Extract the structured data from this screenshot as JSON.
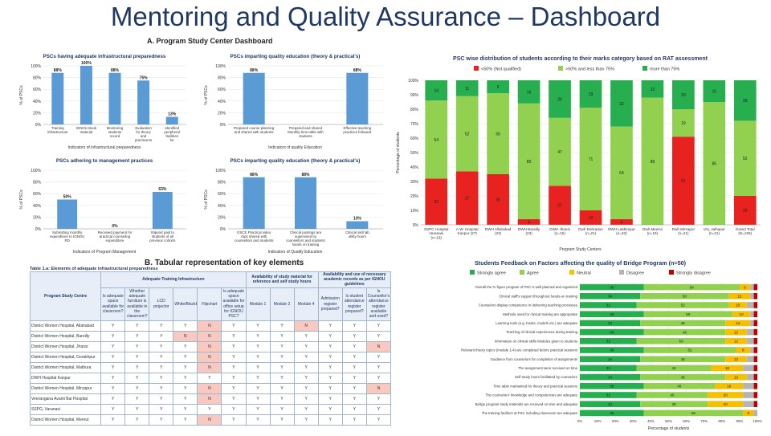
{
  "title": "Mentoring and Quality Assurance – Dashboard",
  "sections": {
    "a": "A. Program Study Center Dashboard",
    "b": "B. Tabular representation of key elements"
  },
  "colors": {
    "blue": "#5b9bd5",
    "red": "#e8221f",
    "lightgreen": "#92d050",
    "green": "#27ae4f",
    "yellow": "#f5c000",
    "grey": "#b4b4b4",
    "darkred": "#c00000"
  },
  "chart_data": [
    {
      "type": "bar",
      "title": "PSCs having adequate infrastructural preparedness",
      "xlabel": "Indicators of infrastructural preparedness",
      "ylabel": "% of PSCs",
      "ylim": [
        0,
        100
      ],
      "yticks": [
        "0%",
        "20%",
        "40%",
        "60%",
        "80%",
        "100%"
      ],
      "categories": [
        "Training infrastructure",
        "IGNOU Book material",
        "Monitoring students record",
        "Evaluation for theory and practicums",
        "Identified peripheral facilities for practicums"
      ],
      "values": [
        88,
        100,
        88,
        75,
        13
      ],
      "labels": [
        "88%",
        "100%",
        "88%",
        "75%",
        "13%"
      ]
    },
    {
      "type": "bar",
      "title": "PSCs imparting quality education (theory & practical's)",
      "xlabel": "Indicators of quality Education",
      "ylabel": "% of PSCs",
      "ylim": [
        0,
        100
      ],
      "yticks": [
        "0%",
        "20%",
        "40%",
        "60%",
        "80%",
        "100%"
      ],
      "categories": [
        "Prepared course planning and shared with students",
        "Prepared and shared Monthly time table with students",
        "Effective teaching practices followed"
      ],
      "values": [
        88,
        0,
        88
      ],
      "labels": [
        "88%",
        "",
        "88%"
      ]
    },
    {
      "type": "bar",
      "title": "PSCs adhering to management practices",
      "xlabel": "Indicators of Program Management",
      "ylabel": "% of PSCs",
      "ylim": [
        0,
        100
      ],
      "yticks": [
        "0%",
        "20%",
        "40%",
        "60%",
        "80%",
        "100%"
      ],
      "categories": [
        "Submitting monthly expenditure to IGNOU RD",
        "Received payment for practical counseling expenditure",
        "Stipend paid to students of all previous cohorts"
      ],
      "values": [
        50,
        0,
        63
      ],
      "labels": [
        "50%",
        "0%",
        "63%"
      ]
    },
    {
      "type": "bar",
      "title": "PSCs imparting quality education (theory & practical's)",
      "xlabel": "Indicators of Quality Education",
      "ylabel": "% of PSCs",
      "ylim": [
        0,
        100
      ],
      "yticks": [
        "0%",
        "20%",
        "40%",
        "60%",
        "80%",
        "100%"
      ],
      "categories": [
        "OSCE Practical video clips shared with counsellors and students",
        "Clinical postings are supervised by counsellors and students hands on training",
        "Clinical skill lab utility hours"
      ],
      "values": [
        88,
        88,
        13
      ],
      "labels": [
        "88%",
        "88%",
        "13%"
      ]
    },
    {
      "type": "bar",
      "stacked": true,
      "title": "PSC wise distribution of students according to their marks category based on RAT assessment",
      "xlabel": "Program Study Centers",
      "ylabel": "Percentage of students",
      "ylim": [
        0,
        100
      ],
      "yticks": [
        "0%",
        "10%",
        "20%",
        "30%",
        "40%",
        "50%",
        "60%",
        "70%",
        "80%",
        "90%",
        "100%"
      ],
      "legend": "top",
      "categories": [
        "SSPC Hospital Varanasi (n=19)",
        "A.W. Hospital Kanpur (27)",
        "DWH Allahabad (23)",
        "DWH Bareilly (23)",
        "DWH Jhansi (n=15)",
        "Dwh Dehradun (n=21)",
        "DWH Lakhimpur (n=23)",
        "Dwh Meerut (n=19)",
        "Dwh Mirzapur (n=21)",
        "VAL Jalhapur (n=21)",
        "Grand Total (N=193)"
      ],
      "series": [
        {
          "name": "<50% (Not qualified)",
          "values": [
            32,
            37,
            35,
            4,
            27,
            10,
            4,
            0,
            61,
            0,
            20
          ],
          "labels": [
            "32",
            "37",
            "35",
            "4",
            "27",
            "10",
            "4",
            "",
            "61",
            "",
            "20"
          ]
        },
        {
          "name": ">50% and less than 75%",
          "values": [
            54,
            52,
            56,
            80,
            47,
            71,
            64,
            88,
            19,
            85,
            52
          ],
          "labels": [
            "54",
            "52",
            "56",
            "80",
            "47",
            "71",
            "64",
            "88",
            "19",
            "85",
            "52"
          ]
        },
        {
          "name": "more than 75%",
          "values": [
            14,
            11,
            9,
            16,
            26,
            19,
            32,
            12,
            20,
            15,
            28
          ],
          "labels": [
            "14",
            "11",
            "9",
            "16",
            "26",
            "19",
            "32",
            "12",
            "20",
            "15",
            "28"
          ]
        }
      ]
    },
    {
      "type": "bar",
      "stacked": true,
      "horizontal": true,
      "title": "Students Feedback on Factors affecting the quality of Bridge Program (n=50)",
      "xlabel": "Percentage of students",
      "xticks": [
        "0%",
        "10%",
        "20%",
        "30%",
        "40%",
        "50%",
        "60%",
        "70%",
        "80%",
        "90%",
        "100%"
      ],
      "legend": "top",
      "categories": [
        "Overall the % figure program of PSC is well planned and organized",
        "Clinical staff's support throughout hands-on training",
        "Counselors display competence in delivering teaching processes",
        "Methods used for clinical training are appropriate",
        "Learning tools (e.g. books, models etc.) are adequate",
        "Teaching of clinical experiences during training",
        "Information on clinical skills Modules given to students",
        "Relevant theory topics (module 1-4) are completed before practical sessions",
        "Guidance from counselors for completion of assignments",
        "The assignment were received on time",
        "Self-study hours facilitated by counselors",
        "Time table maintained for theory and practical sessions",
        "The counselors' knowledge and competencies are adequate",
        "Bridge program study materials are received on time and adequate",
        "The training facilities at PSC including classroom are adequate"
      ],
      "series": [
        {
          "name": "Strongly agree",
          "values": [
            36,
            34,
            32,
            36,
            34,
            36,
            32,
            36,
            34,
            32,
            34,
            36,
            32,
            34,
            36
          ],
          "labels": [
            "36",
            "34",
            "32",
            "36",
            "34",
            "36",
            "32",
            "36",
            "34",
            "32",
            "34",
            "36",
            "32",
            "34",
            "36"
          ]
        },
        {
          "name": "Agree",
          "values": [
            54,
            50,
            52,
            50,
            48,
            46,
            50,
            52,
            48,
            42,
            48,
            40,
            40,
            38,
            56
          ],
          "labels": [
            "54",
            "50",
            "52",
            "50",
            "48",
            "46",
            "50",
            "52",
            "48",
            "42",
            "48",
            "40",
            "40",
            "38",
            "56"
          ]
        },
        {
          "name": "Neutral",
          "values": [
            6,
            12,
            10,
            10,
            14,
            12,
            12,
            8,
            12,
            18,
            12,
            16,
            20,
            20,
            6
          ],
          "labels": [
            "6",
            "12",
            "10",
            "10",
            "14",
            "12",
            "12",
            "8",
            "12",
            "18",
            "12",
            "16",
            "20",
            "20",
            "6"
          ]
        },
        {
          "name": "Disagree",
          "values": [
            2,
            2,
            4,
            2,
            2,
            4,
            4,
            2,
            4,
            6,
            4,
            6,
            6,
            6,
            2
          ],
          "labels": [
            "",
            "",
            "",
            "",
            "",
            "",
            "",
            "",
            "",
            "",
            "",
            "",
            "",
            "",
            ""
          ]
        },
        {
          "name": "Strongly disagree",
          "values": [
            2,
            2,
            2,
            2,
            2,
            2,
            2,
            2,
            2,
            2,
            2,
            2,
            2,
            2,
            0
          ],
          "labels": [
            "",
            "",
            "",
            "",
            "",
            "",
            "",
            "",
            "",
            "",
            "",
            "",
            "",
            "",
            ""
          ]
        }
      ]
    }
  ],
  "table": {
    "caption": "Table 1.a: Elements of adequate infrastructural preparedness",
    "group_headers": [
      "Program Study Centre",
      "Adequate Training Infrastructure",
      "Availability of study material for reference and self study hours",
      "Availability and use of necessary academic records as per IGNOU guidelines"
    ],
    "columns": [
      "Is adequate space available for classroom?",
      "Whether adequate furniture is available in the classroom?",
      "LCD projector",
      "White/Blackboard",
      "Flipchart",
      "Is adequate space available for office setup for IGNOU PSC?",
      "Module 1",
      "Module 2",
      "Module 4",
      "Admission register prepared?",
      "Is student attendance register prepared?",
      "Is Counsellor's attendance register available and used?"
    ],
    "rows": [
      {
        "name": "District Women Hospital, Allahabad",
        "cells": [
          "Y",
          "Y",
          "Y",
          "Y",
          "N",
          "Y",
          "Y",
          "Y",
          "N",
          "Y",
          "Y",
          "Y"
        ]
      },
      {
        "name": "District Women Hospital, Bareilly",
        "cells": [
          "Y",
          "Y",
          "Y",
          "N",
          "N",
          "Y",
          "Y",
          "Y",
          "Y",
          "Y",
          "Y",
          "Y"
        ]
      },
      {
        "name": "District Women Hospital, Jhansi",
        "cells": [
          "Y",
          "Y",
          "Y",
          "Y",
          "N",
          "Y",
          "Y",
          "Y",
          "Y",
          "Y",
          "Y",
          "N"
        ]
      },
      {
        "name": "District Women Hospital, Gorakhpur",
        "cells": [
          "Y",
          "Y",
          "Y",
          "Y",
          "N",
          "Y",
          "Y",
          "Y",
          "Y",
          "Y",
          "Y",
          "Y"
        ]
      },
      {
        "name": "District Women Hospital, Mathura",
        "cells": [
          "Y",
          "Y",
          "Y",
          "Y",
          "N",
          "Y",
          "Y",
          "Y",
          "Y",
          "Y",
          "Y",
          "Y"
        ]
      },
      {
        "name": "DWH Hospital Kanpur",
        "cells": [
          "Y",
          "Y",
          "Y",
          "Y",
          "Y",
          "Y",
          "Y",
          "Y",
          "Y",
          "Y",
          "Y",
          "Y"
        ]
      },
      {
        "name": "District Women Hospital, Mirzapur",
        "cells": [
          "Y",
          "Y",
          "Y",
          "Y",
          "N",
          "Y",
          "Y",
          "Y",
          "Y",
          "Y",
          "Y",
          "N"
        ]
      },
      {
        "name": "Veerangana Avanti Bai Hospital",
        "cells": [
          "Y",
          "Y",
          "Y",
          "Y",
          "N",
          "Y",
          "Y",
          "Y",
          "Y",
          "Y",
          "Y",
          "Y"
        ]
      },
      {
        "name": "SSPG, Varanasi",
        "cells": [
          "Y",
          "Y",
          "Y",
          "Y",
          "Y",
          "Y",
          "Y",
          "Y",
          "Y",
          "Y",
          "Y",
          "Y"
        ]
      },
      {
        "name": "District Women Hospital, Meerut",
        "cells": [
          "Y",
          "Y",
          "Y",
          "Y",
          "N",
          "Y",
          "Y",
          "Y",
          "Y",
          "Y",
          "Y",
          "Y"
        ]
      }
    ]
  }
}
